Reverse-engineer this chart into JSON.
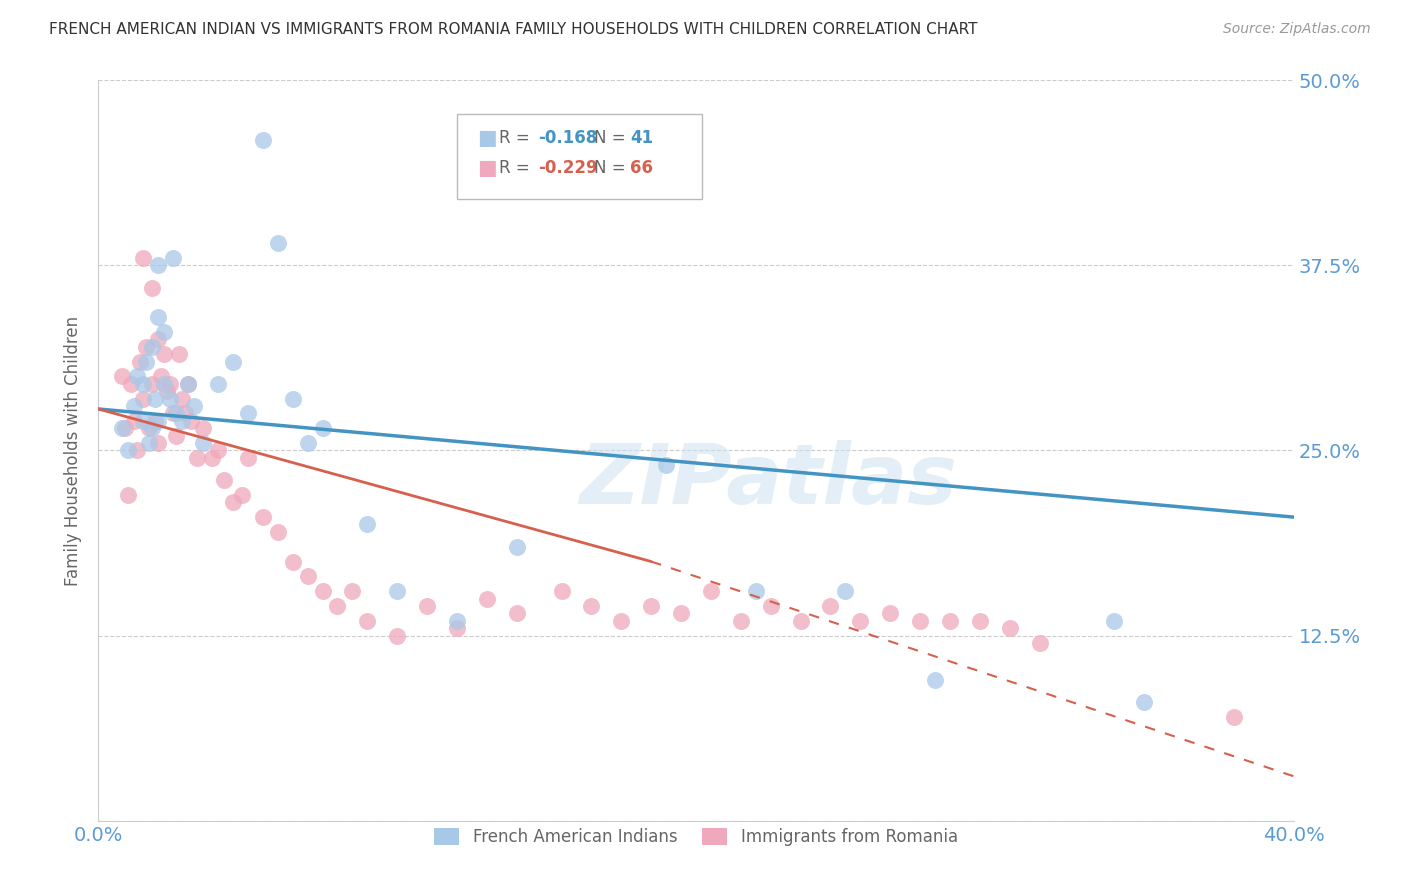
{
  "title": "FRENCH AMERICAN INDIAN VS IMMIGRANTS FROM ROMANIA FAMILY HOUSEHOLDS WITH CHILDREN CORRELATION CHART",
  "source": "Source: ZipAtlas.com",
  "ylabel": "Family Households with Children",
  "yticks": [
    0.0,
    0.125,
    0.25,
    0.375,
    0.5
  ],
  "ytick_labels": [
    "",
    "12.5%",
    "25.0%",
    "37.5%",
    "50.0%"
  ],
  "xlim": [
    0.0,
    0.4
  ],
  "ylim": [
    0.0,
    0.5
  ],
  "watermark": "ZIPatlas",
  "blue_color": "#92c5de",
  "pink_color": "#f4a582",
  "blue_line_color": "#4393c3",
  "pink_line_color": "#d6604d",
  "title_color": "#333333",
  "axis_label_color": "#5b9bd5",
  "source_color": "#999999",
  "ylabel_color": "#666666",
  "blue_label": "French American Indians",
  "pink_label": "Immigrants from Romania",
  "blue_scatter_color": "#a8c8e8",
  "pink_scatter_color": "#f0a8bc",
  "blue_x": [
    0.008,
    0.01,
    0.012,
    0.013,
    0.015,
    0.015,
    0.016,
    0.017,
    0.018,
    0.018,
    0.019,
    0.02,
    0.02,
    0.02,
    0.022,
    0.022,
    0.024,
    0.025,
    0.026,
    0.028,
    0.03,
    0.032,
    0.035,
    0.04,
    0.045,
    0.05,
    0.055,
    0.06,
    0.065,
    0.07,
    0.075,
    0.09,
    0.1,
    0.12,
    0.14,
    0.19,
    0.22,
    0.25,
    0.28,
    0.34,
    0.35
  ],
  "blue_y": [
    0.265,
    0.25,
    0.28,
    0.3,
    0.27,
    0.295,
    0.31,
    0.255,
    0.32,
    0.265,
    0.285,
    0.375,
    0.34,
    0.27,
    0.33,
    0.295,
    0.285,
    0.38,
    0.275,
    0.27,
    0.295,
    0.28,
    0.255,
    0.295,
    0.31,
    0.275,
    0.46,
    0.39,
    0.285,
    0.255,
    0.265,
    0.2,
    0.155,
    0.135,
    0.185,
    0.24,
    0.155,
    0.155,
    0.095,
    0.135,
    0.08
  ],
  "pink_x": [
    0.008,
    0.009,
    0.01,
    0.011,
    0.012,
    0.013,
    0.014,
    0.015,
    0.015,
    0.016,
    0.017,
    0.018,
    0.018,
    0.019,
    0.02,
    0.02,
    0.021,
    0.022,
    0.023,
    0.024,
    0.025,
    0.026,
    0.027,
    0.028,
    0.029,
    0.03,
    0.031,
    0.033,
    0.035,
    0.038,
    0.04,
    0.042,
    0.045,
    0.048,
    0.05,
    0.055,
    0.06,
    0.065,
    0.07,
    0.075,
    0.08,
    0.085,
    0.09,
    0.1,
    0.11,
    0.12,
    0.13,
    0.14,
    0.155,
    0.165,
    0.175,
    0.185,
    0.195,
    0.205,
    0.215,
    0.225,
    0.235,
    0.245,
    0.255,
    0.265,
    0.275,
    0.285,
    0.295,
    0.305,
    0.315,
    0.38
  ],
  "pink_y": [
    0.3,
    0.265,
    0.22,
    0.295,
    0.27,
    0.25,
    0.31,
    0.38,
    0.285,
    0.32,
    0.265,
    0.295,
    0.36,
    0.27,
    0.325,
    0.255,
    0.3,
    0.315,
    0.29,
    0.295,
    0.275,
    0.26,
    0.315,
    0.285,
    0.275,
    0.295,
    0.27,
    0.245,
    0.265,
    0.245,
    0.25,
    0.23,
    0.215,
    0.22,
    0.245,
    0.205,
    0.195,
    0.175,
    0.165,
    0.155,
    0.145,
    0.155,
    0.135,
    0.125,
    0.145,
    0.13,
    0.15,
    0.14,
    0.155,
    0.145,
    0.135,
    0.145,
    0.14,
    0.155,
    0.135,
    0.145,
    0.135,
    0.145,
    0.135,
    0.14,
    0.135,
    0.135,
    0.135,
    0.13,
    0.12,
    0.07
  ],
  "blue_line_x0": 0.0,
  "blue_line_x1": 0.4,
  "blue_line_y0": 0.278,
  "blue_line_y1": 0.205,
  "pink_line_solid_x0": 0.0,
  "pink_line_solid_x1": 0.185,
  "pink_line_solid_y0": 0.278,
  "pink_line_solid_y1": 0.175,
  "pink_line_dash_x0": 0.185,
  "pink_line_dash_x1": 0.4,
  "pink_line_dash_y0": 0.175,
  "pink_line_dash_y1": 0.03
}
